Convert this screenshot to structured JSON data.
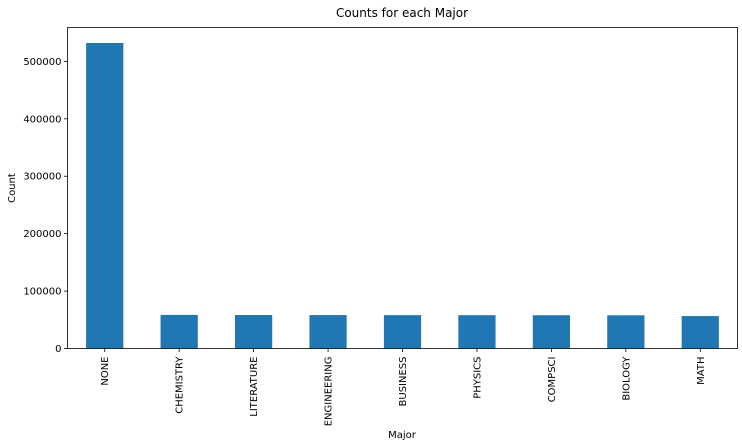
{
  "chart_data": {
    "type": "bar",
    "title": "Counts for each Major",
    "xlabel": "Major",
    "ylabel": "Count",
    "categories": [
      "NONE",
      "CHEMISTRY",
      "LITERATURE",
      "ENGINEERING",
      "BUSINESS",
      "PHYSICS",
      "COMPSCI",
      "BIOLOGY",
      "MATH"
    ],
    "values": [
      532000,
      58500,
      58300,
      58200,
      58100,
      58000,
      57900,
      57800,
      56500
    ],
    "ylim": [
      0,
      559000
    ],
    "yticks": [
      0,
      100000,
      200000,
      300000,
      400000,
      500000
    ],
    "ytick_labels": [
      "0",
      "100000",
      "200000",
      "300000",
      "400000",
      "500000"
    ],
    "bar_color": "#1f77b4",
    "grid": false,
    "legend": "none",
    "x_tick_rotation": "vertical"
  }
}
